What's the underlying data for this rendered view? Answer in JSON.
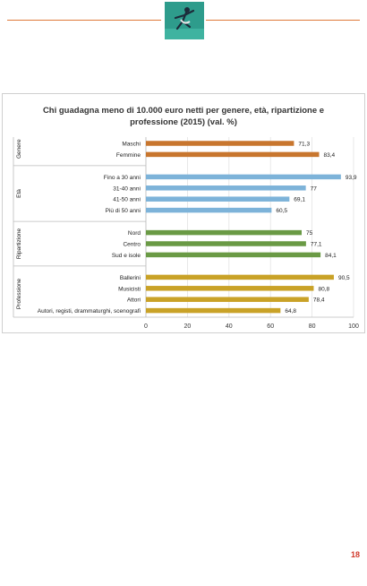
{
  "page": {
    "number": "18"
  },
  "header": {
    "logo_icon": "dancer-silhouette-logo"
  },
  "chart_data": {
    "type": "bar",
    "orientation": "horizontal",
    "title": "Chi guadagna meno di 10.000 euro netti per genere, età, ripartizione e professione (2015) (val. %)",
    "title_lines": [
      "Chi guadagna meno di 10.000 euro netti per genere, età, ripartizione e",
      "professione (2015) (val. %)"
    ],
    "xlim": [
      0,
      100
    ],
    "x_ticks": [
      "0",
      "20",
      "40",
      "60",
      "80",
      "100"
    ],
    "grid": true,
    "groups": [
      {
        "name": "Genere",
        "color": "#c8762e",
        "categories": [
          "Maschi",
          "Femmine"
        ],
        "values": [
          71.3,
          83.4
        ],
        "value_labels": [
          "71,3",
          "83,4"
        ]
      },
      {
        "name": "Età",
        "color": "#7db3d9",
        "categories": [
          "Fino a 30 anni",
          "31-40 anni",
          "41-50 anni",
          "Più di 50 anni"
        ],
        "values": [
          93.9,
          77,
          69.1,
          60.5
        ],
        "value_labels": [
          "93,9",
          "77",
          "69,1",
          "60,5"
        ]
      },
      {
        "name": "Ripartizione",
        "color": "#6a9a45",
        "categories": [
          "Nord",
          "Centro",
          "Sud e isole"
        ],
        "values": [
          75,
          77.1,
          84.1
        ],
        "value_labels": [
          "75",
          "77,1",
          "84,1"
        ]
      },
      {
        "name": "Professione",
        "color": "#c9a227",
        "categories": [
          "Ballerini",
          "Musicisti",
          "Attori",
          "Autori, registi, drammaturghi, scenografi"
        ],
        "values": [
          90.5,
          80.8,
          78.4,
          64.8
        ],
        "value_labels": [
          "90,5",
          "80,8",
          "78,4",
          "64,8"
        ]
      }
    ]
  }
}
